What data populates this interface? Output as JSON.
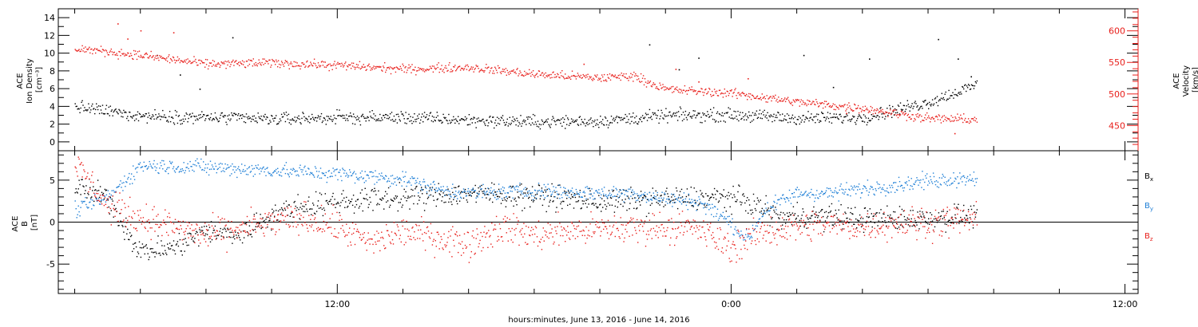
{
  "chart_data": [
    {
      "type": "scatter",
      "panel": "plasma",
      "left_axis": {
        "label_lines": [
          "ACE",
          "Ion Density",
          "[cm⁻³]"
        ],
        "range": [
          -1,
          15
        ],
        "major_ticks": [
          0,
          2,
          4,
          6,
          8,
          10,
          12,
          14
        ],
        "color": "#000000"
      },
      "right_axis": {
        "label_lines": [
          "ACE",
          "Velocity",
          "[km/s]"
        ],
        "range": [
          410,
          635
        ],
        "major_ticks": [
          450,
          500,
          550,
          600
        ],
        "color": "#e8201c"
      },
      "series": [
        {
          "axis": "left",
          "color": "#000000",
          "anchors": [
            [
              4,
              4.0
            ],
            [
              6,
              3.0
            ],
            [
              8,
              2.8
            ],
            [
              10,
              2.6
            ],
            [
              12,
              2.8
            ],
            [
              14,
              2.8
            ],
            [
              16,
              2.5
            ],
            [
              18,
              2.3
            ],
            [
              20,
              2.4
            ],
            [
              22,
              3.0
            ],
            [
              24,
              3.1
            ],
            [
              26,
              2.7
            ],
            [
              28,
              2.8
            ],
            [
              30,
              4.5
            ],
            [
              31.5,
              6.5
            ]
          ],
          "noise": 0.7,
          "outliers": [
            [
              6.5,
              9.8
            ],
            [
              7.2,
              7.6
            ],
            [
              8.8,
              11.8
            ],
            [
              21.5,
              11.0
            ],
            [
              23.0,
              9.5
            ],
            [
              26.2,
              9.8
            ],
            [
              28.2,
              9.4
            ],
            [
              30.3,
              11.6
            ],
            [
              30.9,
              9.4
            ],
            [
              31.3,
              7.4
            ],
            [
              7.8,
              6.0
            ],
            [
              22.4,
              8.2
            ],
            [
              27.1,
              6.2
            ]
          ]
        },
        {
          "axis": "right",
          "color": "#e8201c",
          "anchors": [
            [
              4,
              573
            ],
            [
              6,
              562
            ],
            [
              8,
              548
            ],
            [
              10,
              550
            ],
            [
              12,
              546
            ],
            [
              14,
              540
            ],
            [
              16,
              543
            ],
            [
              18,
              532
            ],
            [
              20,
              526
            ],
            [
              21,
              530
            ],
            [
              22,
              508
            ],
            [
              24,
              502
            ],
            [
              26,
              488
            ],
            [
              28,
              478
            ],
            [
              30,
              462
            ],
            [
              31.5,
              460
            ]
          ],
          "noise": 7,
          "outliers": [
            [
              5.3,
              612
            ],
            [
              6.0,
              601
            ],
            [
              7.0,
              598
            ],
            [
              19.5,
              548
            ],
            [
              22.3,
              540
            ],
            [
              24.5,
              525
            ],
            [
              27.5,
              470
            ],
            [
              30.8,
              438
            ],
            [
              5.6,
              588
            ],
            [
              23.0,
              520
            ]
          ]
        }
      ]
    },
    {
      "type": "scatter",
      "panel": "magnetic_field",
      "left_axis": {
        "label_lines": [
          "ACE",
          "B",
          "[nT]"
        ],
        "range": [
          -8.5,
          8.5
        ],
        "major_ticks": [
          -5,
          0,
          5
        ],
        "color": "#000000"
      },
      "zero_line": true,
      "legend": [
        {
          "label": "B",
          "subscript": "x",
          "color": "#000000"
        },
        {
          "label": "B",
          "subscript": "y",
          "color": "#1f7fd6"
        },
        {
          "label": "B",
          "subscript": "z",
          "color": "#e8201c"
        }
      ],
      "series": [
        {
          "name": "Bx",
          "color": "#000000",
          "anchors": [
            [
              4,
              4.2
            ],
            [
              5,
              3.0
            ],
            [
              5.5,
              -0.5
            ],
            [
              6,
              -3.5
            ],
            [
              7,
              -3.0
            ],
            [
              8,
              -1.0
            ],
            [
              9,
              -1.5
            ],
            [
              10,
              1.0
            ],
            [
              11,
              2.0
            ],
            [
              12,
              2.5
            ],
            [
              14,
              3.0
            ],
            [
              16,
              3.5
            ],
            [
              18,
              3.2
            ],
            [
              20,
              2.5
            ],
            [
              22,
              2.8
            ],
            [
              24,
              3.0
            ],
            [
              24.8,
              2.0
            ],
            [
              25.5,
              0.5
            ],
            [
              26,
              0.8
            ],
            [
              27,
              0.8
            ],
            [
              28,
              0.5
            ],
            [
              29,
              0.5
            ],
            [
              30,
              0.5
            ],
            [
              31,
              0.8
            ],
            [
              31.5,
              1.0
            ]
          ],
          "noise": 1.4
        },
        {
          "name": "By",
          "color": "#1f7fd6",
          "anchors": [
            [
              4,
              1.5
            ],
            [
              5,
              3.0
            ],
            [
              6,
              6.8
            ],
            [
              8,
              6.6
            ],
            [
              10,
              6.2
            ],
            [
              12,
              5.8
            ],
            [
              14,
              5.2
            ],
            [
              15,
              4.0
            ],
            [
              16,
              3.5
            ],
            [
              18,
              3.8
            ],
            [
              20,
              3.5
            ],
            [
              21,
              3.5
            ],
            [
              22,
              2.8
            ],
            [
              23,
              2.5
            ],
            [
              23.8,
              0.5
            ],
            [
              24.5,
              -2.0
            ],
            [
              25,
              1.5
            ],
            [
              26,
              3.5
            ],
            [
              27,
              3.5
            ],
            [
              28,
              4.0
            ],
            [
              30,
              5.0
            ],
            [
              31.5,
              5.4
            ]
          ],
          "noise": 0.9
        },
        {
          "name": "Bz",
          "color": "#e8201c",
          "anchors": [
            [
              4,
              7.0
            ],
            [
              4.5,
              4.5
            ],
            [
              5,
              2.0
            ],
            [
              6,
              0.5
            ],
            [
              7,
              -0.5
            ],
            [
              8,
              -1.5
            ],
            [
              10,
              0.0
            ],
            [
              11,
              0.5
            ],
            [
              12,
              -0.5
            ],
            [
              13,
              -2.5
            ],
            [
              14,
              -1.0
            ],
            [
              16,
              -2.5
            ],
            [
              17,
              -0.5
            ],
            [
              18,
              -1.5
            ],
            [
              19,
              -1.0
            ],
            [
              20,
              -0.8
            ],
            [
              22,
              -0.5
            ],
            [
              23,
              -0.8
            ],
            [
              24,
              -3.0
            ],
            [
              25,
              -1.0
            ],
            [
              26,
              -0.5
            ],
            [
              27,
              -0.3
            ],
            [
              28,
              -0.5
            ],
            [
              29,
              0.0
            ],
            [
              30,
              0.0
            ],
            [
              31.5,
              0.5
            ]
          ],
          "noise": 1.8
        }
      ]
    }
  ],
  "x_axis": {
    "range": [
      3.5,
      36.4
    ],
    "major_ticks": [
      {
        "x": 12,
        "label": "12:00"
      },
      {
        "x": 24,
        "label": "0:00"
      },
      {
        "x": 36,
        "label": "12:00"
      }
    ],
    "minor_ticks": [
      4,
      6,
      8,
      10,
      14,
      16,
      18,
      20,
      22,
      26,
      28,
      30,
      32,
      34
    ],
    "title": "hours:minutes, June 13, 2016 - June 14, 2016"
  }
}
